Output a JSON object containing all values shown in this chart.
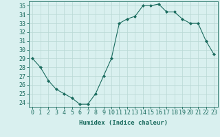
{
  "x": [
    0,
    1,
    2,
    3,
    4,
    5,
    6,
    7,
    8,
    9,
    10,
    11,
    12,
    13,
    14,
    15,
    16,
    17,
    18,
    19,
    20,
    21,
    22,
    23
  ],
  "y": [
    29,
    28,
    26.5,
    25.5,
    25,
    24.5,
    23.8,
    23.8,
    25,
    27,
    29,
    33,
    33.5,
    33.8,
    35,
    35,
    35.2,
    34.3,
    34.3,
    33.5,
    33,
    33,
    31,
    29.5
  ],
  "line_color": "#1a6b5e",
  "marker": "D",
  "marker_size": 2.0,
  "bg_color": "#d9f0ef",
  "grid_color": "#b8d8d5",
  "tick_color": "#1a6b5e",
  "xlabel": "Humidex (Indice chaleur)",
  "ylim": [
    23.5,
    35.5
  ],
  "yticks": [
    24,
    25,
    26,
    27,
    28,
    29,
    30,
    31,
    32,
    33,
    34,
    35
  ],
  "xlim": [
    -0.5,
    23.5
  ],
  "xticks": [
    0,
    1,
    2,
    3,
    4,
    5,
    6,
    7,
    8,
    9,
    10,
    11,
    12,
    13,
    14,
    15,
    16,
    17,
    18,
    19,
    20,
    21,
    22,
    23
  ],
  "label_fontsize": 6.5,
  "tick_fontsize": 6.0
}
